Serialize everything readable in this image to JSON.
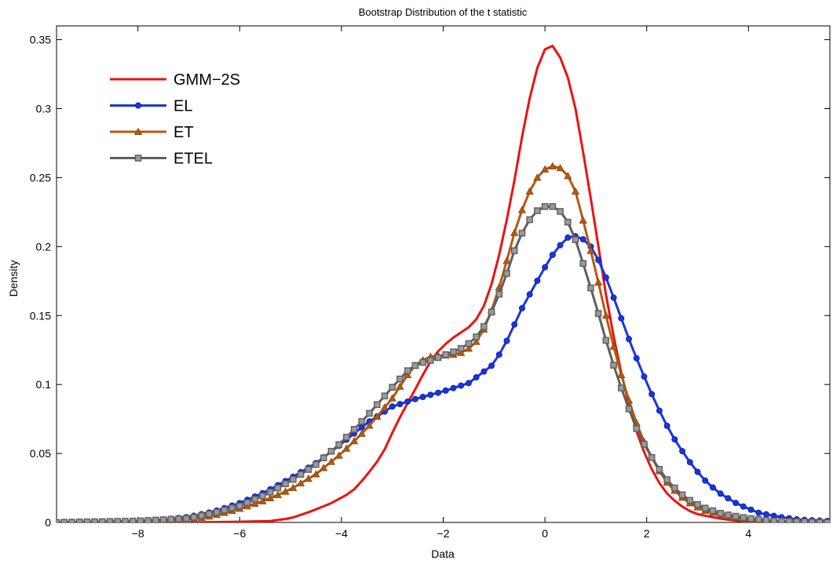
{
  "chart_data": {
    "type": "line",
    "title": "Bootstrap Distribution of the t statistic",
    "xlabel": "Data",
    "ylabel": "Density",
    "xlim": [
      -9.6,
      5.6
    ],
    "ylim": [
      0,
      0.36
    ],
    "xticks": [
      -8,
      -6,
      -4,
      -2,
      0,
      2,
      4
    ],
    "xtick_labels": [
      "−8",
      "−6",
      "−4",
      "−2",
      "0",
      "2",
      "4"
    ],
    "yticks": [
      0,
      0.05,
      0.1,
      0.15,
      0.2,
      0.25,
      0.3,
      0.35
    ],
    "ytick_labels": [
      "0",
      "0.05",
      "0.1",
      "0.15",
      "0.2",
      "0.25",
      "0.3",
      "0.35"
    ],
    "grid": false,
    "legend_position": "top-left",
    "series": [
      {
        "name": "GMM−2S",
        "color": "#ee1111",
        "marker": "none",
        "points": [
          [
            -9.6,
            0
          ],
          [
            -7,
            0
          ],
          [
            -6,
            0.0005
          ],
          [
            -5.4,
            0.001
          ],
          [
            -5,
            0.003
          ],
          [
            -4.6,
            0.008
          ],
          [
            -4.2,
            0.014
          ],
          [
            -3.8,
            0.022
          ],
          [
            -3.6,
            0.03
          ],
          [
            -3.4,
            0.039
          ],
          [
            -3.2,
            0.049
          ],
          [
            -3.0,
            0.065
          ],
          [
            -2.8,
            0.08
          ],
          [
            -2.6,
            0.093
          ],
          [
            -2.4,
            0.107
          ],
          [
            -2.2,
            0.12
          ],
          [
            -2.0,
            0.128
          ],
          [
            -1.8,
            0.134
          ],
          [
            -1.6,
            0.139
          ],
          [
            -1.4,
            0.144
          ],
          [
            -1.2,
            0.157
          ],
          [
            -1.0,
            0.178
          ],
          [
            -0.8,
            0.21
          ],
          [
            -0.6,
            0.248
          ],
          [
            -0.4,
            0.29
          ],
          [
            -0.2,
            0.325
          ],
          [
            0,
            0.343
          ],
          [
            0.1,
            0.347
          ],
          [
            0.2,
            0.344
          ],
          [
            0.4,
            0.33
          ],
          [
            0.6,
            0.3
          ],
          [
            0.8,
            0.258
          ],
          [
            1.0,
            0.212
          ],
          [
            1.2,
            0.165
          ],
          [
            1.4,
            0.125
          ],
          [
            1.6,
            0.092
          ],
          [
            1.8,
            0.066
          ],
          [
            2.0,
            0.046
          ],
          [
            2.2,
            0.031
          ],
          [
            2.4,
            0.021
          ],
          [
            2.6,
            0.014
          ],
          [
            2.8,
            0.009
          ],
          [
            3.0,
            0.006
          ],
          [
            3.4,
            0.003
          ],
          [
            3.8,
            0.001
          ],
          [
            4.2,
            0.0005
          ],
          [
            5.6,
            0
          ]
        ]
      },
      {
        "name": "EL",
        "color": "#1a35e0",
        "marker": "circle",
        "points": [
          [
            -9.6,
            0
          ],
          [
            -9,
            0.0005
          ],
          [
            -8,
            0.001
          ],
          [
            -7.5,
            0.002
          ],
          [
            -7,
            0.004
          ],
          [
            -6.5,
            0.008
          ],
          [
            -6,
            0.014
          ],
          [
            -5.5,
            0.022
          ],
          [
            -5,
            0.032
          ],
          [
            -4.5,
            0.043
          ],
          [
            -4,
            0.057
          ],
          [
            -3.5,
            0.072
          ],
          [
            -3,
            0.084
          ],
          [
            -2.5,
            0.09
          ],
          [
            -2,
            0.095
          ],
          [
            -1.5,
            0.101
          ],
          [
            -1,
            0.115
          ],
          [
            -0.7,
            0.135
          ],
          [
            -0.5,
            0.152
          ],
          [
            -0.2,
            0.172
          ],
          [
            0,
            0.185
          ],
          [
            0.2,
            0.197
          ],
          [
            0.4,
            0.205
          ],
          [
            0.5,
            0.208
          ],
          [
            0.7,
            0.207
          ],
          [
            0.9,
            0.2
          ],
          [
            1.1,
            0.187
          ],
          [
            1.3,
            0.168
          ],
          [
            1.5,
            0.148
          ],
          [
            1.7,
            0.128
          ],
          [
            1.9,
            0.11
          ],
          [
            2.1,
            0.093
          ],
          [
            2.3,
            0.077
          ],
          [
            2.5,
            0.063
          ],
          [
            2.8,
            0.046
          ],
          [
            3.1,
            0.032
          ],
          [
            3.4,
            0.022
          ],
          [
            3.8,
            0.013
          ],
          [
            4.2,
            0.007
          ],
          [
            4.6,
            0.004
          ],
          [
            5,
            0.002
          ],
          [
            5.6,
            0.001
          ]
        ]
      },
      {
        "name": "ET",
        "color": "#b35a0f",
        "marker": "triangle",
        "points": [
          [
            -9.6,
            0
          ],
          [
            -8,
            0.0005
          ],
          [
            -7,
            0.002
          ],
          [
            -6.5,
            0.005
          ],
          [
            -6,
            0.01
          ],
          [
            -5.5,
            0.016
          ],
          [
            -5,
            0.024
          ],
          [
            -4.5,
            0.035
          ],
          [
            -4,
            0.05
          ],
          [
            -3.5,
            0.068
          ],
          [
            -3,
            0.09
          ],
          [
            -2.7,
            0.107
          ],
          [
            -2.5,
            0.116
          ],
          [
            -2.2,
            0.121
          ],
          [
            -2,
            0.121
          ],
          [
            -1.7,
            0.122
          ],
          [
            -1.4,
            0.128
          ],
          [
            -1.2,
            0.14
          ],
          [
            -1,
            0.158
          ],
          [
            -0.8,
            0.183
          ],
          [
            -0.6,
            0.21
          ],
          [
            -0.4,
            0.232
          ],
          [
            -0.2,
            0.248
          ],
          [
            0,
            0.256
          ],
          [
            0.2,
            0.259
          ],
          [
            0.4,
            0.255
          ],
          [
            0.6,
            0.24
          ],
          [
            0.8,
            0.212
          ],
          [
            1.0,
            0.182
          ],
          [
            1.2,
            0.15
          ],
          [
            1.4,
            0.12
          ],
          [
            1.6,
            0.094
          ],
          [
            1.8,
            0.072
          ],
          [
            2.0,
            0.054
          ],
          [
            2.2,
            0.04
          ],
          [
            2.4,
            0.029
          ],
          [
            2.6,
            0.021
          ],
          [
            2.8,
            0.015
          ],
          [
            3.1,
            0.009
          ],
          [
            3.5,
            0.005
          ],
          [
            4,
            0.002
          ],
          [
            4.5,
            0.001
          ],
          [
            5.6,
            0
          ]
        ]
      },
      {
        "name": "ETEL",
        "color": "#5e5e5e",
        "marker": "square",
        "points": [
          [
            -9.6,
            0
          ],
          [
            -8,
            0.001
          ],
          [
            -7,
            0.003
          ],
          [
            -6.5,
            0.007
          ],
          [
            -6,
            0.012
          ],
          [
            -5.5,
            0.02
          ],
          [
            -5,
            0.03
          ],
          [
            -4.5,
            0.042
          ],
          [
            -4,
            0.058
          ],
          [
            -3.5,
            0.077
          ],
          [
            -3,
            0.098
          ],
          [
            -2.7,
            0.11
          ],
          [
            -2.5,
            0.115
          ],
          [
            -2.2,
            0.118
          ],
          [
            -2,
            0.121
          ],
          [
            -1.7,
            0.125
          ],
          [
            -1.4,
            0.132
          ],
          [
            -1.2,
            0.142
          ],
          [
            -1,
            0.156
          ],
          [
            -0.8,
            0.175
          ],
          [
            -0.6,
            0.197
          ],
          [
            -0.4,
            0.214
          ],
          [
            -0.2,
            0.225
          ],
          [
            0,
            0.229
          ],
          [
            0.2,
            0.229
          ],
          [
            0.4,
            0.222
          ],
          [
            0.6,
            0.205
          ],
          [
            0.8,
            0.182
          ],
          [
            1.0,
            0.158
          ],
          [
            1.2,
            0.132
          ],
          [
            1.4,
            0.108
          ],
          [
            1.6,
            0.087
          ],
          [
            1.8,
            0.068
          ],
          [
            2.0,
            0.053
          ],
          [
            2.2,
            0.041
          ],
          [
            2.4,
            0.031
          ],
          [
            2.6,
            0.023
          ],
          [
            2.8,
            0.017
          ],
          [
            3.1,
            0.011
          ],
          [
            3.5,
            0.006
          ],
          [
            4,
            0.003
          ],
          [
            4.5,
            0.001
          ],
          [
            5.6,
            0
          ]
        ]
      }
    ]
  }
}
